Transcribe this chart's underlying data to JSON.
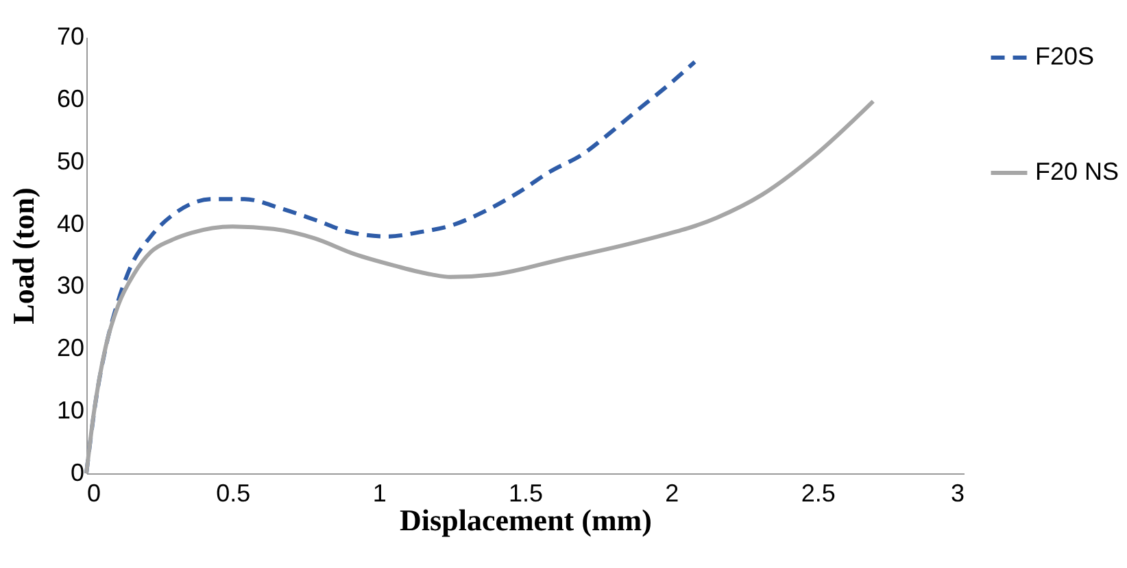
{
  "chart_data": {
    "type": "line",
    "xlabel": "Displacement (mm)",
    "ylabel": "Load (ton)",
    "xlim": [
      0,
      3
    ],
    "xticks": [
      0,
      0.5,
      1,
      1.5,
      2,
      2.5,
      3
    ],
    "ylim": [
      0,
      70
    ],
    "yticks": [
      0,
      10,
      20,
      30,
      40,
      50,
      60,
      70
    ],
    "legend": "right",
    "series": [
      {
        "name": "F20S",
        "color": "#2e5ca8",
        "line_style": "dashed",
        "x": [
          0,
          0.03,
          0.07,
          0.109,
          0.15,
          0.22,
          0.305,
          0.43,
          0.54,
          0.665,
          0.78,
          0.9,
          1.03,
          1.14,
          1.25,
          1.36,
          1.475,
          1.585,
          1.7,
          1.79,
          1.89,
          1.99,
          2.08
        ],
        "values": [
          0,
          11,
          21,
          27.7,
          33,
          38,
          41.8,
          44,
          44,
          42.5,
          40.7,
          38.7,
          38,
          38.7,
          39.8,
          42,
          45,
          48.4,
          51.3,
          54.6,
          58.5,
          62.3,
          66
        ]
      },
      {
        "name": "F20 NS",
        "color": "#a6a6a6",
        "line_style": "solid",
        "x": [
          0,
          0.025,
          0.067,
          0.109,
          0.163,
          0.22,
          0.29,
          0.36,
          0.5,
          0.64,
          0.78,
          0.915,
          1.055,
          1.18,
          1.245,
          1.39,
          1.63,
          1.905,
          2.155,
          2.31,
          2.48,
          2.69
        ],
        "values": [
          0,
          9.5,
          20.5,
          27,
          32,
          35.5,
          37.4,
          38.6,
          39.6,
          39.2,
          37.7,
          35.2,
          33.3,
          31.9,
          31.5,
          31.9,
          34.4,
          37.4,
          41,
          44.7,
          50.6,
          59.7
        ]
      }
    ]
  }
}
